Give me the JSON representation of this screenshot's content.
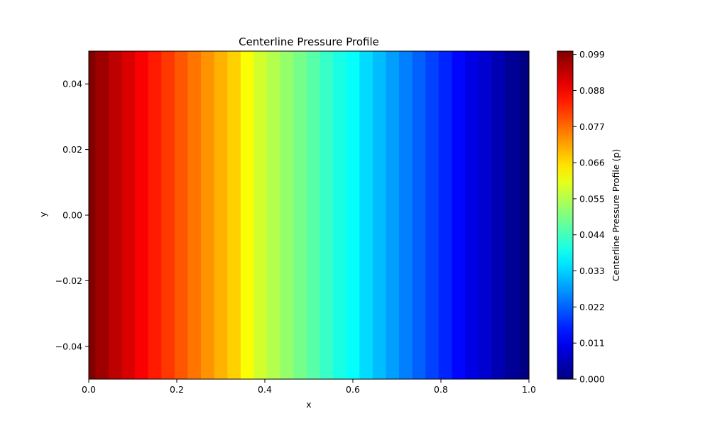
{
  "chart_data": {
    "type": "heatmap",
    "title": "Centerline Pressure Profile",
    "xlabel": "x",
    "ylabel": "y",
    "xlim": [
      0.0,
      1.0
    ],
    "ylim": [
      -0.05,
      0.05
    ],
    "x_ticks": [
      0.0,
      0.2,
      0.4,
      0.6,
      0.8,
      1.0
    ],
    "x_tick_labels": [
      "0.0",
      "0.2",
      "0.4",
      "0.6",
      "0.8",
      "1.0"
    ],
    "y_ticks": [
      0.04,
      0.02,
      0.0,
      -0.02,
      -0.04
    ],
    "y_tick_labels": [
      "0.04",
      "0.02",
      "0.00",
      "−0.02",
      "−0.04"
    ],
    "colormap": "jet",
    "colorbar": {
      "label": "Centerline Pressure Profile (p)",
      "range": [
        0.0,
        0.1
      ],
      "ticks": [
        0.0,
        0.011,
        0.022,
        0.033,
        0.044,
        0.055,
        0.066,
        0.077,
        0.088,
        0.099
      ],
      "tick_labels": [
        "0.000",
        "0.011",
        "0.022",
        "0.033",
        "0.044",
        "0.055",
        "0.066",
        "0.077",
        "0.088",
        "0.099"
      ]
    },
    "x": [
      0.0,
      0.03,
      0.06,
      0.09,
      0.12,
      0.15,
      0.18,
      0.21,
      0.24,
      0.27,
      0.3,
      0.33,
      0.36,
      0.39,
      0.42,
      0.45,
      0.48,
      0.51,
      0.54,
      0.57,
      0.6,
      0.63,
      0.66,
      0.69,
      0.72,
      0.75,
      0.78,
      0.81,
      0.84,
      0.87,
      0.9,
      0.93,
      0.96,
      1.0
    ],
    "p": [
      0.1,
      0.097,
      0.094,
      0.091,
      0.088,
      0.085,
      0.082,
      0.079,
      0.076,
      0.073,
      0.07,
      0.067,
      0.062,
      0.058,
      0.055,
      0.052,
      0.049,
      0.046,
      0.043,
      0.04,
      0.038,
      0.034,
      0.031,
      0.028,
      0.025,
      0.022,
      0.019,
      0.016,
      0.013,
      0.01,
      0.008,
      0.005,
      0.002,
      0.0
    ],
    "grid": false
  }
}
